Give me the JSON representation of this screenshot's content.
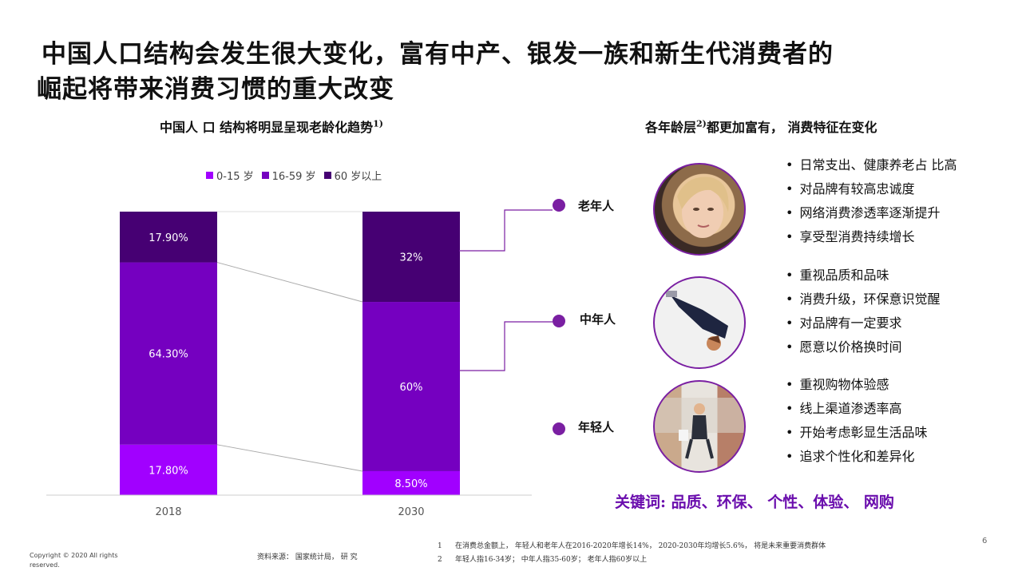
{
  "title": {
    "line1": "中国人口结构会发生很大变化，富有中产、银发一族和新生代消费者的",
    "line2": "崛起将带来消费习惯的重大改变"
  },
  "left_heading": {
    "text": "中国人 口 结构将明显呈现老龄化趋势",
    "sup": "1)"
  },
  "right_heading": {
    "pre": "各年龄层",
    "sup": "2)",
    "post": "都更加富有，  消费特征在变化"
  },
  "colors": {
    "young": "#a100ff",
    "middle": "#7500c0",
    "old": "#460073",
    "accent": "#7a1fa2"
  },
  "chart_data": {
    "type": "bar",
    "stacked": true,
    "categories": [
      "2018",
      "2030"
    ],
    "series": [
      {
        "name": "0-15 岁",
        "values": [
          17.8,
          8.5
        ],
        "labels": [
          "17.80%",
          "8.50%"
        ]
      },
      {
        "name": "16-59 岁",
        "values": [
          64.3,
          60
        ],
        "labels": [
          "64.30%",
          "60%"
        ]
      },
      {
        "name": "60 岁以上",
        "values": [
          17.9,
          32
        ],
        "labels": [
          "17.90%",
          "32%"
        ]
      }
    ],
    "legend_position": "top"
  },
  "segments": [
    {
      "label": "老年人",
      "photo": "older-woman-portrait",
      "bullets": [
        "日常支出、健康养老占 比高",
        "对品牌有较高忠诚度",
        "网络消费渗透率逐渐提升",
        "享受型消费持续增长"
      ]
    },
    {
      "label": "中年人",
      "photo": "businessman-overhead",
      "bullets": [
        "重视品质和品味",
        "消费升级，环保意识觉醒",
        "对品牌有一定要求",
        "愿意以价格换时间"
      ]
    },
    {
      "label": "年轻人",
      "photo": "young-woman-shopping",
      "bullets": [
        "重视购物体验感",
        "线上渠道渗透率高",
        "开始考虑彰显生活品味",
        "追求个性化和差异化"
      ]
    }
  ],
  "keywords": "关键词:  品质、环保、 个性、体验、 网购",
  "footer": {
    "copyright": "Copyright ©  2020  All rights reserved.",
    "source": "资料来源：  国家统计局，  研  究",
    "note1_num": "1",
    "note1": "在消费总金额上， 年轻人和老年人在2016-2020年增长14%， 2020-2030年均增长5.6%， 将是未来重要消费群体",
    "note2_num": "2",
    "note2": "年轻人指16-34岁；      中年人指35-60岁； 老年人指60岁以上",
    "page": "6"
  }
}
